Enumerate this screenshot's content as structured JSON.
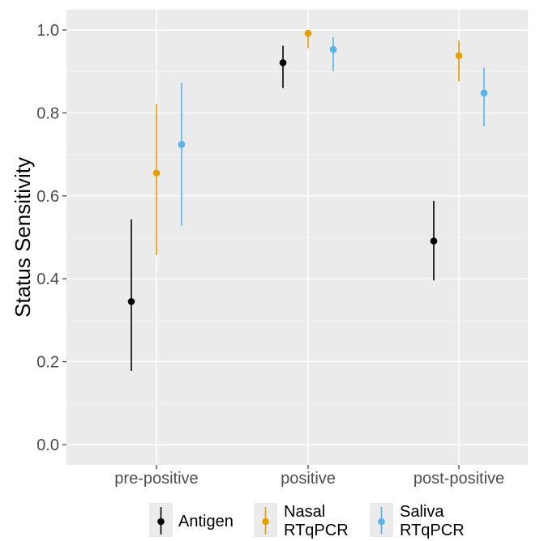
{
  "chart_data": {
    "type": "scatter",
    "subtype": "point-range",
    "title": "",
    "xlabel": "",
    "ylabel": "Status Sensitivity",
    "ylim": [
      -0.05,
      1.05
    ],
    "yticks": [
      0.0,
      0.2,
      0.4,
      0.6,
      0.8,
      1.0
    ],
    "ytick_labels": [
      "0.0",
      "0.2",
      "0.4",
      "0.6",
      "0.8",
      "1.0"
    ],
    "categories": [
      "pre-positive",
      "positive",
      "post-positive"
    ],
    "grid": true,
    "legend_position": "bottom",
    "series": [
      {
        "name": "Antigen",
        "color": "#000000",
        "values": [
          0.345,
          0.921,
          0.491
        ],
        "lower": [
          0.178,
          0.86,
          0.396
        ],
        "upper": [
          0.543,
          0.962,
          0.588
        ]
      },
      {
        "name": "Nasal RTqPCR",
        "legend_lines": [
          "Nasal",
          "RTqPCR"
        ],
        "color": "#E69F00",
        "values": [
          0.655,
          0.992,
          0.938
        ],
        "lower": [
          0.457,
          0.956,
          0.876
        ],
        "upper": [
          0.821,
          1.0,
          0.975
        ]
      },
      {
        "name": "Saliva RTqPCR",
        "legend_lines": [
          "Saliva",
          "RTqPCR"
        ],
        "color": "#56B4E9",
        "values": [
          0.724,
          0.953,
          0.848
        ],
        "lower": [
          0.528,
          0.9,
          0.768
        ],
        "upper": [
          0.873,
          0.983,
          0.909
        ]
      }
    ]
  }
}
